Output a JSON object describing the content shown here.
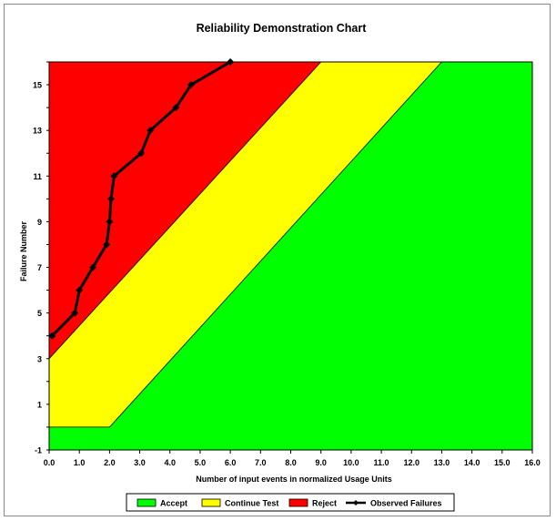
{
  "chart_data": {
    "type": "area",
    "title": "Reliability Demonstration Chart",
    "xlabel": "Number  of input events  in normalized Usage Units",
    "ylabel": "Failure Number",
    "xlim": [
      0,
      16
    ],
    "ylim": [
      -1,
      16
    ],
    "x_ticks": [
      "0.0",
      "1.0",
      "2.0",
      "3.0",
      "4.0",
      "5.0",
      "6.0",
      "7.0",
      "8.0",
      "9.0",
      "10.0",
      "11.0",
      "12.0",
      "13.0",
      "14.0",
      "15.0",
      "16.0"
    ],
    "y_ticks": [
      "-1",
      "1",
      "3",
      "5",
      "7",
      "9",
      "11",
      "13",
      "15"
    ],
    "legend_position": "bottom",
    "grid": false,
    "regions": [
      {
        "name": "Accept",
        "color": "#00ff00"
      },
      {
        "name": "Continue Test",
        "color": "#ffff00"
      },
      {
        "name": "Reject",
        "color": "#ff0000"
      }
    ],
    "boundaries": {
      "reject_line": {
        "x": [
          0,
          9
        ],
        "y": [
          3,
          16
        ]
      },
      "accept_line": {
        "x": [
          0,
          2,
          13
        ],
        "y": [
          0,
          0,
          16
        ]
      }
    },
    "series": [
      {
        "name": "Observed Failures",
        "color": "#000000",
        "x": [
          0.1,
          0.85,
          1.0,
          1.45,
          1.9,
          2.0,
          2.05,
          2.15,
          3.05,
          3.35,
          4.2,
          4.7,
          6.0
        ],
        "y": [
          4,
          5,
          6,
          7,
          8,
          9,
          10,
          11,
          12,
          13,
          14,
          15,
          16
        ]
      }
    ]
  }
}
